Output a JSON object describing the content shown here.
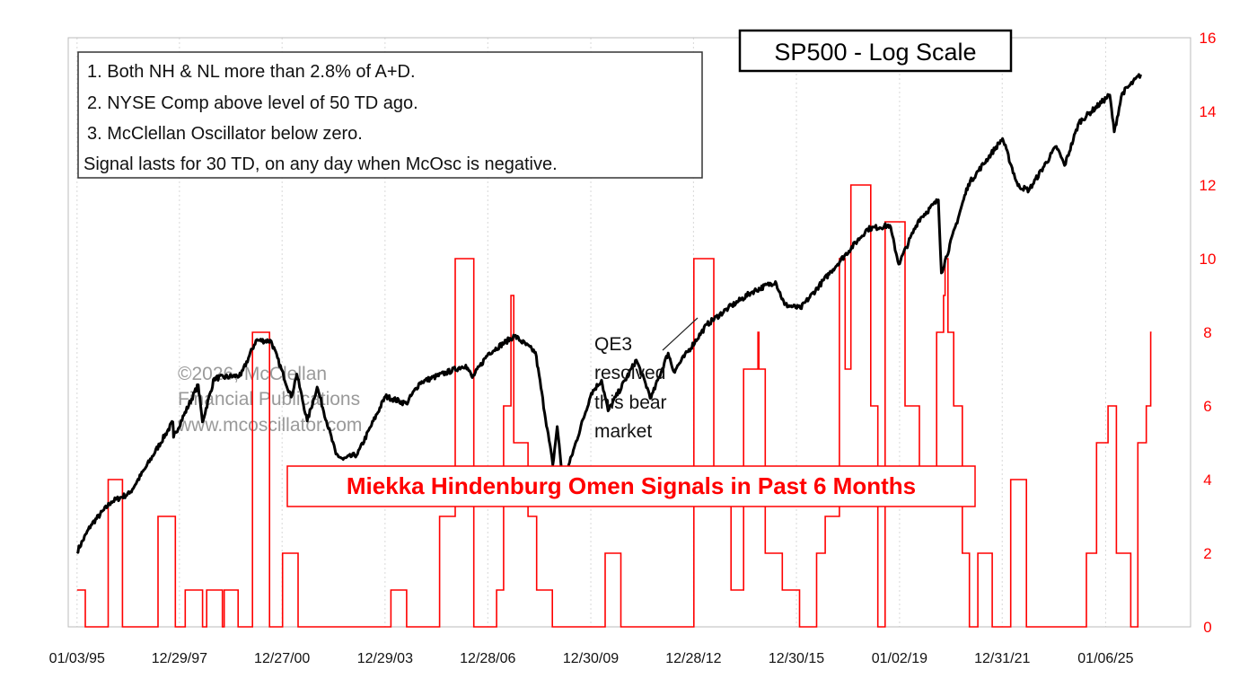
{
  "colors": {
    "price_line": "#000000",
    "signal_line": "#ff0000",
    "right_axis": "#ff0000",
    "grid": "#d8d8d8",
    "frame": "#bbbbbb",
    "watermark": "#9a9a9a"
  },
  "chart_data": {
    "type": "line",
    "title": "SP500 - Log Scale",
    "signal_title": "Miekka Hindenburg Omen Signals in Past 6 Months",
    "criteria": [
      "1. Both NH & NL more than 2.8% of A+D.",
      "2. NYSE Comp above level of 50 TD ago.",
      "3. McClellan Oscillator below zero.",
      "Signal lasts for 30 TD, on any day when McOsc is negative."
    ],
    "watermark": [
      "©2026, McClellan",
      "Financial Publications",
      "www.mcoscillator.com"
    ],
    "annotation": [
      "QE3",
      "resolved",
      "this bear",
      "market"
    ],
    "x_range": [
      "1994-10-01",
      "2027-06-30"
    ],
    "x_ticks": [
      {
        "date": "1995-01-03",
        "label": "01/03/95"
      },
      {
        "date": "1997-12-29",
        "label": "12/29/97"
      },
      {
        "date": "2000-12-27",
        "label": "12/27/00"
      },
      {
        "date": "2003-12-29",
        "label": "12/29/03"
      },
      {
        "date": "2006-12-28",
        "label": "12/28/06"
      },
      {
        "date": "2009-12-30",
        "label": "12/30/09"
      },
      {
        "date": "2012-12-28",
        "label": "12/28/12"
      },
      {
        "date": "2015-12-30",
        "label": "12/30/15"
      },
      {
        "date": "2019-01-02",
        "label": "01/02/19"
      },
      {
        "date": "2021-12-31",
        "label": "12/31/21"
      },
      {
        "date": "2025-01-06",
        "label": "01/06/25"
      }
    ],
    "right_axis": {
      "ylim": [
        0,
        16
      ],
      "ticks": [
        "0",
        "2",
        "4",
        "6",
        "8",
        "10",
        "12",
        "14",
        "16"
      ],
      "log_scale": false
    },
    "left_axis": {
      "log_scale": true,
      "ylim": [
        300,
        8500
      ],
      "labels_shown": false
    },
    "grid": {
      "vertical": true,
      "horizontal": false
    },
    "series": [
      {
        "name": "SP500",
        "points": [
          [
            "1995-01-03",
            460
          ],
          [
            "1995-06-01",
            535
          ],
          [
            "1996-01-02",
            610
          ],
          [
            "1996-07-15",
            640
          ],
          [
            "1997-01-02",
            740
          ],
          [
            "1997-10-20",
            960
          ],
          [
            "1997-10-27",
            880
          ],
          [
            "1998-07-17",
            1185
          ],
          [
            "1998-08-31",
            960
          ],
          [
            "1999-01-04",
            1230
          ],
          [
            "1999-10-15",
            1250
          ],
          [
            "2000-03-24",
            1525
          ],
          [
            "2000-09-01",
            1520
          ],
          [
            "2001-04-04",
            1105
          ],
          [
            "2001-06-01",
            1260
          ],
          [
            "2001-09-21",
            965
          ],
          [
            "2002-01-04",
            1170
          ],
          [
            "2002-07-23",
            800
          ],
          [
            "2002-10-09",
            776
          ],
          [
            "2003-03-11",
            800
          ],
          [
            "2004-01-02",
            1110
          ],
          [
            "2004-08-12",
            1065
          ],
          [
            "2005-01-03",
            1200
          ],
          [
            "2006-05-08",
            1325
          ],
          [
            "2006-07-17",
            1235
          ],
          [
            "2007-01-02",
            1415
          ],
          [
            "2007-10-09",
            1565
          ],
          [
            "2008-05-19",
            1425
          ],
          [
            "2008-11-20",
            752
          ],
          [
            "2009-01-06",
            935
          ],
          [
            "2009-03-09",
            676
          ],
          [
            "2010-01-04",
            1130
          ],
          [
            "2010-04-23",
            1217
          ],
          [
            "2010-07-02",
            1022
          ],
          [
            "2011-04-29",
            1364
          ],
          [
            "2011-10-03",
            1099
          ],
          [
            "2012-04-02",
            1419
          ],
          [
            "2012-06-01",
            1278
          ],
          [
            "2013-05-21",
            1669
          ],
          [
            "2014-01-02",
            1832
          ],
          [
            "2014-09-18",
            2011
          ],
          [
            "2015-05-21",
            2130
          ],
          [
            "2015-08-25",
            1867
          ],
          [
            "2016-02-11",
            1829
          ],
          [
            "2017-01-03",
            2258
          ],
          [
            "2018-01-26",
            2872
          ],
          [
            "2018-09-20",
            2930
          ],
          [
            "2018-12-24",
            2351
          ],
          [
            "2019-07-26",
            3025
          ],
          [
            "2020-02-19",
            3386
          ],
          [
            "2020-03-23",
            2237
          ],
          [
            "2021-01-04",
            3700
          ],
          [
            "2022-01-03",
            4796
          ],
          [
            "2022-06-16",
            3667
          ],
          [
            "2022-10-12",
            3577
          ],
          [
            "2023-07-31",
            4588
          ],
          [
            "2023-10-27",
            4117
          ],
          [
            "2024-03-28",
            5254
          ],
          [
            "2025-02-19",
            6144
          ],
          [
            "2025-04-08",
            4982
          ],
          [
            "2025-07-01",
            6200
          ],
          [
            "2026-01-15",
            6900
          ]
        ]
      },
      {
        "name": "Miekka Hindenburg Omen Signals in Past 6 Months",
        "steps": [
          [
            "1995-01-03",
            1
          ],
          [
            "1995-04-01",
            0
          ],
          [
            "1995-12-01",
            4
          ],
          [
            "1996-05-01",
            0
          ],
          [
            "1997-05-15",
            3
          ],
          [
            "1997-11-15",
            0
          ],
          [
            "1998-03-01",
            1
          ],
          [
            "1998-09-01",
            0
          ],
          [
            "1998-10-15",
            1
          ],
          [
            "1999-04-01",
            0
          ],
          [
            "1999-04-20",
            1
          ],
          [
            "1999-09-15",
            0
          ],
          [
            "2000-02-15",
            8
          ],
          [
            "2000-08-15",
            0
          ],
          [
            "2001-01-01",
            2
          ],
          [
            "2001-06-15",
            0
          ],
          [
            "2004-03-01",
            1
          ],
          [
            "2004-08-15",
            0
          ],
          [
            "2005-08-01",
            3
          ],
          [
            "2006-01-15",
            10
          ],
          [
            "2006-08-01",
            0
          ],
          [
            "2007-04-01",
            1
          ],
          [
            "2007-06-15",
            6
          ],
          [
            "2007-09-01",
            9
          ],
          [
            "2007-10-01",
            5
          ],
          [
            "2008-03-01",
            3
          ],
          [
            "2008-06-01",
            1
          ],
          [
            "2008-11-15",
            0
          ],
          [
            "2010-06-01",
            2
          ],
          [
            "2010-11-15",
            0
          ],
          [
            "2013-01-01",
            10
          ],
          [
            "2013-08-01",
            4
          ],
          [
            "2014-02-01",
            1
          ],
          [
            "2014-06-15",
            7
          ],
          [
            "2014-11-15",
            8
          ],
          [
            "2014-11-25",
            7
          ],
          [
            "2015-02-01",
            2
          ],
          [
            "2015-08-01",
            1
          ],
          [
            "2016-02-01",
            0
          ],
          [
            "2016-08-01",
            2
          ],
          [
            "2016-11-01",
            3
          ],
          [
            "2017-04-01",
            10
          ],
          [
            "2017-06-01",
            7
          ],
          [
            "2017-08-01",
            12
          ],
          [
            "2018-03-01",
            6
          ],
          [
            "2018-05-15",
            0
          ],
          [
            "2018-08-01",
            11
          ],
          [
            "2019-03-01",
            6
          ],
          [
            "2019-08-01",
            4
          ],
          [
            "2020-02-01",
            8
          ],
          [
            "2020-04-15",
            9
          ],
          [
            "2020-05-01",
            10
          ],
          [
            "2020-06-01",
            8
          ],
          [
            "2020-08-01",
            6
          ],
          [
            "2020-11-01",
            2
          ],
          [
            "2021-01-15",
            0
          ],
          [
            "2021-04-15",
            2
          ],
          [
            "2021-09-15",
            0
          ],
          [
            "2022-04-01",
            4
          ],
          [
            "2022-09-15",
            0
          ],
          [
            "2024-06-15",
            2
          ],
          [
            "2024-10-01",
            5
          ],
          [
            "2025-02-01",
            6
          ],
          [
            "2025-05-01",
            2
          ],
          [
            "2025-10-01",
            0
          ],
          [
            "2025-12-15",
            5
          ],
          [
            "2026-03-15",
            6
          ],
          [
            "2026-05-01",
            8
          ]
        ]
      }
    ]
  }
}
